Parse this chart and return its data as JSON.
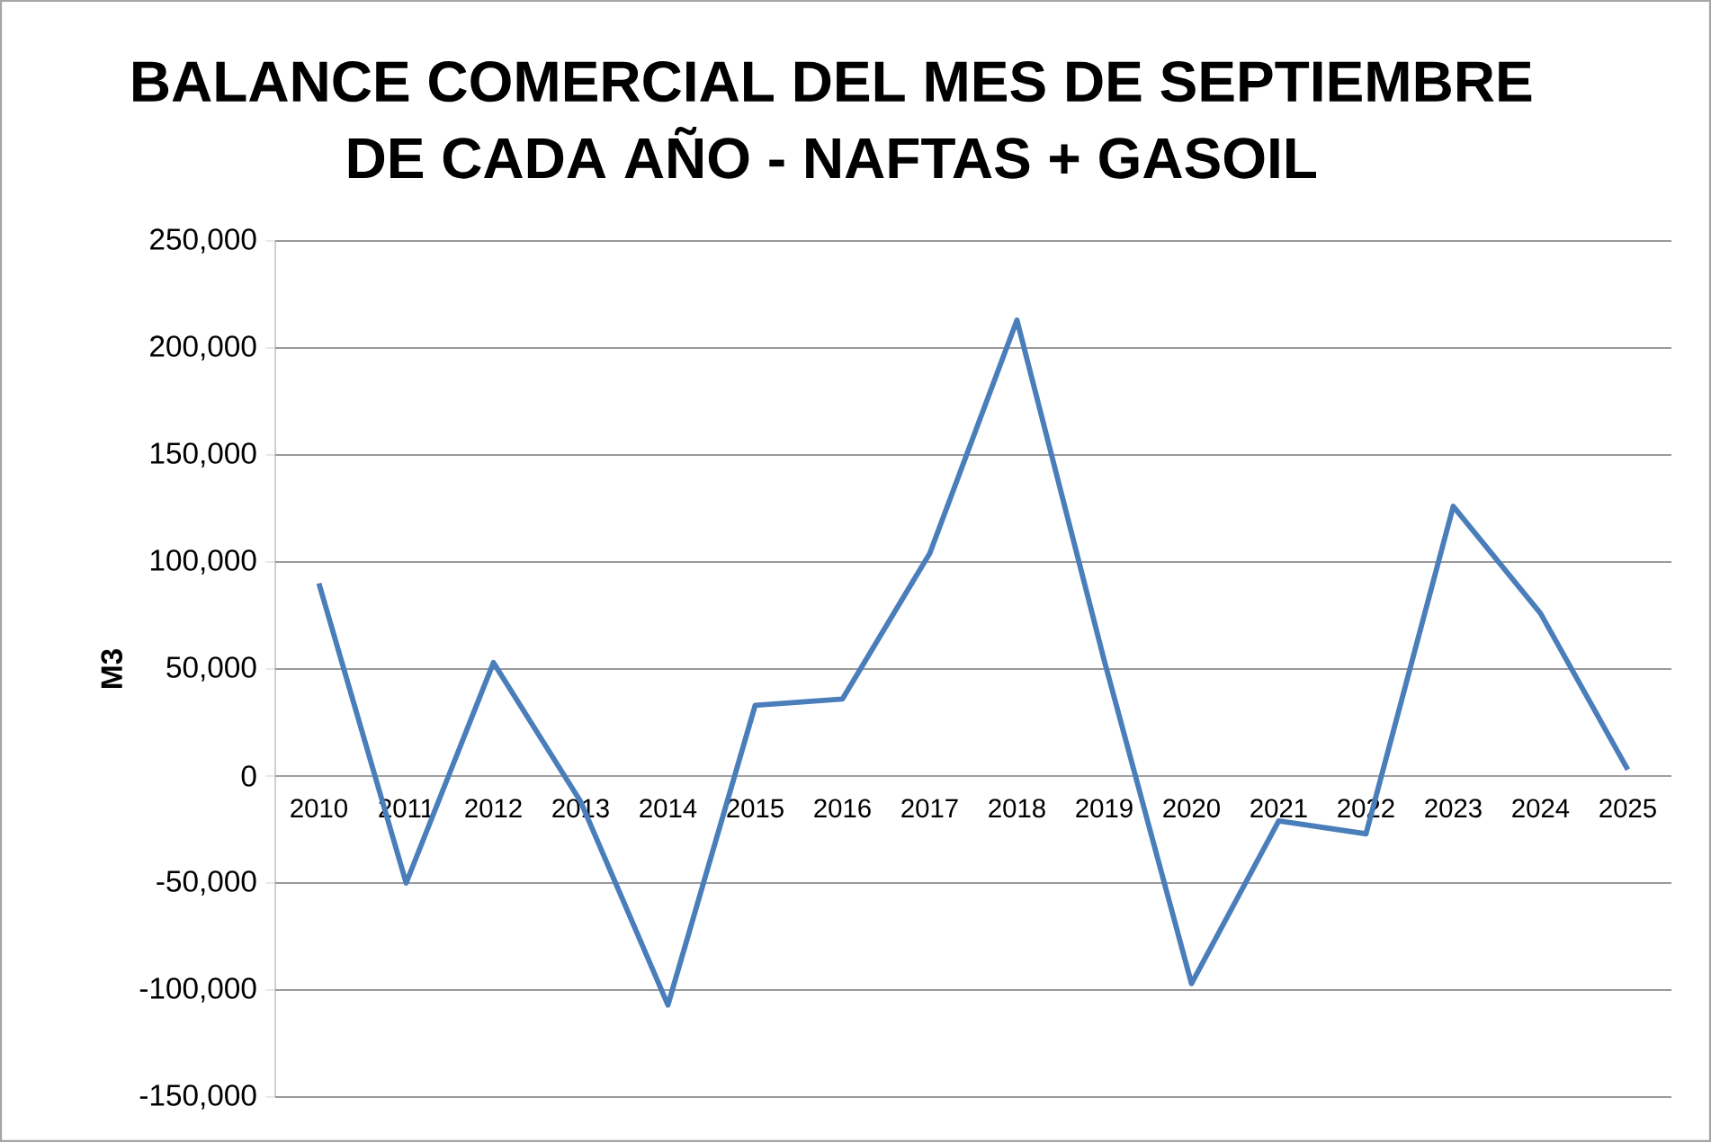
{
  "chart_data": {
    "type": "line",
    "title": "BALANCE COMERCIAL DEL MES DE SEPTIEMBRE\nDE CADA AÑO - NAFTAS + GASOIL",
    "ylabel": "M3",
    "categories": [
      "2010",
      "2011",
      "2012",
      "2013",
      "2014",
      "2015",
      "2016",
      "2017",
      "2018",
      "2019",
      "2020",
      "2021",
      "2022",
      "2023",
      "2024",
      "2025"
    ],
    "series": [
      {
        "color": "#4a7ebb",
        "values": [
          90000,
          -50000,
          53000,
          -12000,
          -107000,
          33000,
          36000,
          104000,
          213000,
          54000,
          -97000,
          -21000,
          -27000,
          126000,
          76000,
          3000
        ]
      }
    ],
    "ylim": [
      -150000,
      250000
    ],
    "yticks": [
      {
        "value": -150000,
        "label": "-150,000"
      },
      {
        "value": -100000,
        "label": "-100,000"
      },
      {
        "value": -50000,
        "label": "-50,000"
      },
      {
        "value": 0,
        "label": "0"
      },
      {
        "value": 50000,
        "label": "50,000"
      },
      {
        "value": 100000,
        "label": "100,000"
      },
      {
        "value": 150000,
        "label": "150,000"
      },
      {
        "value": 200000,
        "label": "200,000"
      },
      {
        "value": 250000,
        "label": "250,000"
      }
    ],
    "grid": "y",
    "marker": "none",
    "line_style": "solid"
  }
}
